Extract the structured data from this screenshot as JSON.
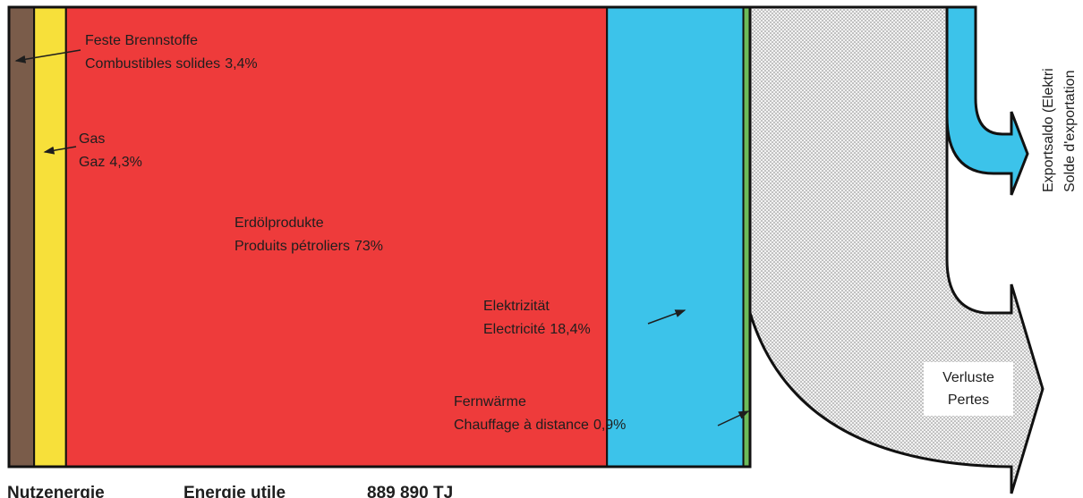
{
  "segments": [
    {
      "name": "Feste Brennstoffe",
      "name_fr": "Combustibles solides",
      "value": 3.4,
      "value_label": "3,4%",
      "color": "#7a5c4a"
    },
    {
      "name": "Gas",
      "name_fr": "Gaz",
      "value": 4.3,
      "value_label": "4,3%",
      "color": "#f7e03a"
    },
    {
      "name": "Erdölprodukte",
      "name_fr": "Produits pétroliers",
      "value": 73,
      "value_label": "73%",
      "color": "#ee3b3b"
    },
    {
      "name": "Elektrizität",
      "name_fr": "Electricité",
      "value": 18.4,
      "value_label": "18,4%",
      "color": "#3cc3ea"
    },
    {
      "name": "Fernwärme",
      "name_fr": "Chauffage à distance",
      "value": 0.9,
      "value_label": "0,9%",
      "color": "#6dbb5a"
    }
  ],
  "export": {
    "line1": "Exportsaldo (Elektri",
    "line2": "Solde d'exportation"
  },
  "losses": {
    "line1": "Verluste",
    "line2": "Pertes"
  },
  "footer": {
    "de": "Nutzenergie",
    "fr": "Energie utile",
    "total": "889 890 TJ"
  }
}
